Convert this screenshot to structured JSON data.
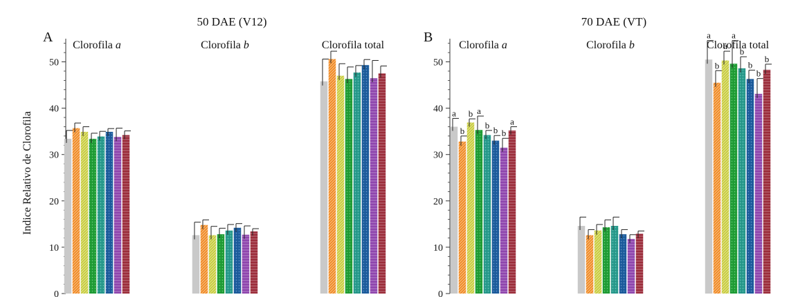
{
  "chart_data": [
    {
      "type": "bar",
      "panel": "A",
      "title": "50 DAE (V12)",
      "ylabel": "Indice Relativo de Clorofila",
      "ylim": [
        0,
        55
      ],
      "yticks": [
        0,
        10,
        20,
        30,
        40,
        50
      ],
      "groups": [
        {
          "label": "Clorofila ",
          "italic": "a",
          "values": [
            33.4,
            35.7,
            34.9,
            33.4,
            33.9,
            34.9,
            33.8,
            34.2
          ],
          "errors": [
            1.8,
            1.1,
            1.1,
            1.2,
            1.1,
            0.7,
            1.9,
            0.9
          ],
          "letters": []
        },
        {
          "label": "Clorofila ",
          "italic": "b",
          "values": [
            12.6,
            14.8,
            12.6,
            12.8,
            13.6,
            14.2,
            12.7,
            13.4
          ],
          "errors": [
            2.8,
            1.1,
            1.9,
            1.3,
            1.3,
            0.9,
            1.9,
            0.6
          ],
          "letters": []
        },
        {
          "label": "Clorofila total",
          "italic": "",
          "values": [
            45.8,
            50.6,
            47.0,
            46.3,
            47.7,
            49.3,
            46.5,
            47.5
          ],
          "errors": [
            4.8,
            1.7,
            2.6,
            2.6,
            1.5,
            1.2,
            3.8,
            1.6
          ],
          "letters": []
        }
      ]
    },
    {
      "type": "bar",
      "panel": "B",
      "title": "70 DAE (VT)",
      "ylim": [
        0,
        55
      ],
      "yticks": [
        0,
        10,
        20,
        30,
        40,
        50
      ],
      "groups": [
        {
          "label": "Clorofila ",
          "italic": "a",
          "values": [
            36.0,
            32.8,
            36.9,
            35.3,
            34.2,
            33.0,
            31.5,
            35.2
          ],
          "errors": [
            1.8,
            1.2,
            0.8,
            3.0,
            1.0,
            1.1,
            2.0,
            0.8
          ],
          "letters": [
            "a",
            "b",
            "b",
            "a",
            "b",
            "b",
            "b",
            "a"
          ]
        },
        {
          "label": "Clorofila ",
          "italic": "b",
          "values": [
            14.6,
            12.6,
            13.6,
            14.3,
            14.6,
            12.8,
            11.8,
            12.9
          ],
          "errors": [
            1.9,
            1.2,
            1.3,
            1.6,
            1.9,
            1.0,
            0.9,
            0.6
          ],
          "letters": []
        },
        {
          "label": "Clorofila total",
          "italic": "",
          "values": [
            50.5,
            45.5,
            50.3,
            49.6,
            48.6,
            46.3,
            43.1,
            48.3
          ],
          "errors": [
            4.1,
            2.6,
            2.0,
            5.0,
            2.5,
            1.9,
            3.3,
            1.2
          ],
          "letters": [
            "a",
            "b",
            "a",
            "a",
            "b",
            "b",
            "b",
            "b"
          ]
        }
      ]
    }
  ],
  "treatment_colors": [
    "#c9c9c9",
    "#f08a24",
    "#c8cc3c",
    "#22a038",
    "#2a9d8f",
    "#1f5fa0",
    "#8e44ad",
    "#9b2c3a"
  ],
  "treatment_patterns": [
    "solid",
    "hatch",
    "hatch",
    "dots",
    "dots",
    "dots",
    "hlines",
    "hlines"
  ]
}
